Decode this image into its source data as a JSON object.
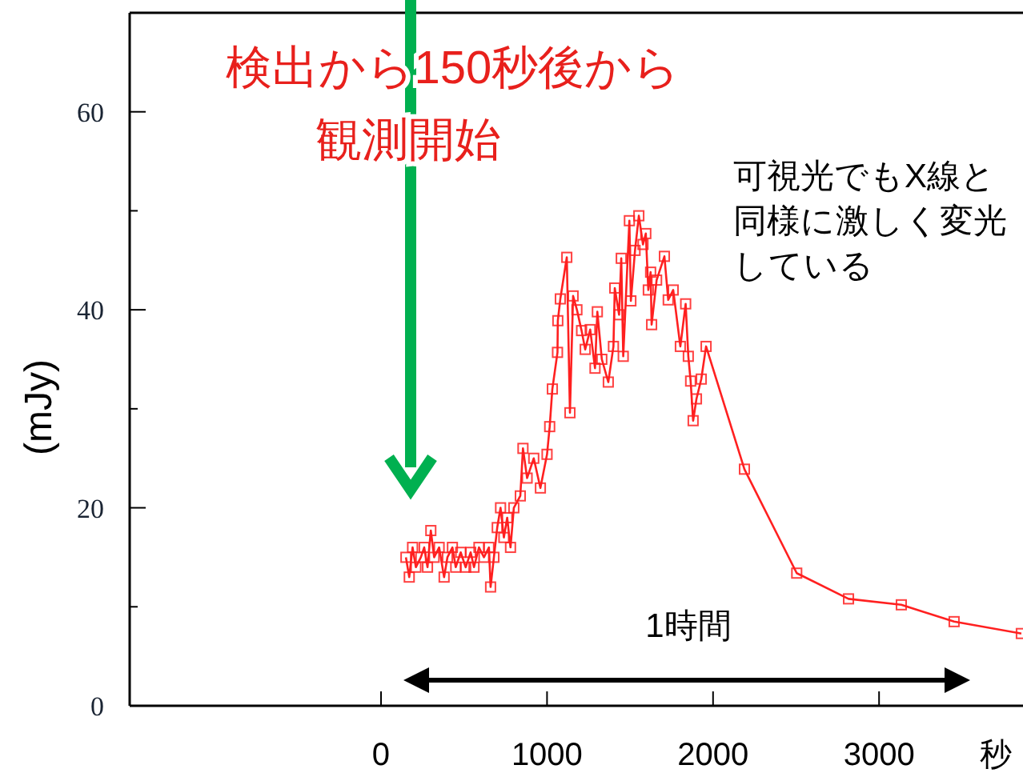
{
  "chart_data": {
    "type": "line",
    "ylabel": "(mJy)",
    "xlabel": "秒",
    "xlim": [
      -1514,
      3867
    ],
    "ylim": [
      0,
      70
    ],
    "xticks": [
      0,
      1000,
      2000,
      3000
    ],
    "yticks": [
      0,
      {
        "value": 10,
        "label": null
      },
      20,
      {
        "value": 30,
        "label": null
      },
      40,
      {
        "value": 50,
        "label": null
      },
      60
    ],
    "marker": "square",
    "line_style": "solid",
    "grid": false,
    "annotations": [
      "検出から150秒後から観測開始",
      "可視光でもX線と同様に激しく変光している",
      "1時間"
    ],
    "series": [
      {
        "color": "#ff2020",
        "x": [
          150,
          170,
          190,
          210,
          240,
          260,
          280,
          300,
          320,
          350,
          380,
          400,
          430,
          450,
          480,
          510,
          540,
          560,
          590,
          620,
          650,
          660,
          680,
          700,
          720,
          740,
          760,
          780,
          800,
          839,
          855,
          880,
          920,
          960,
          1000,
          1016,
          1032,
          1063,
          1065,
          1080,
          1119,
          1138,
          1157,
          1180,
          1208,
          1230,
          1260,
          1289,
          1303,
          1330,
          1369,
          1400,
          1408,
          1434,
          1447,
          1459,
          1496,
          1505,
          1530,
          1553,
          1578,
          1595,
          1610,
          1624,
          1630,
          1660,
          1707,
          1730,
          1760,
          1803,
          1835,
          1851,
          1865,
          1880,
          1900,
          1929,
          1958,
          2189,
          2504,
          2816,
          3134,
          3452,
          3857
        ],
        "values": [
          15,
          13,
          16,
          14,
          15,
          16,
          14,
          17.7,
          15,
          16,
          13,
          15,
          16,
          14,
          15.5,
          14,
          15.5,
          14,
          16,
          15,
          16,
          12,
          15,
          18,
          20,
          17,
          19,
          16,
          20,
          21.2,
          26,
          23,
          25,
          22,
          25.4,
          28.2,
          32,
          35.7,
          38.9,
          41.1,
          45.3,
          29.6,
          41.4,
          40,
          37.9,
          36,
          38,
          34.1,
          39.8,
          35,
          32.7,
          36.3,
          42.2,
          39.5,
          45.2,
          35.3,
          49,
          40.9,
          46,
          49.5,
          46.6,
          47.7,
          42,
          43.8,
          38.5,
          43,
          45.4,
          41,
          42,
          36.3,
          40.6,
          35.3,
          32.8,
          28.8,
          31,
          33,
          36.3,
          23.9,
          13.4,
          10.8,
          10.2,
          8.5,
          7.3
        ]
      }
    ]
  }
}
